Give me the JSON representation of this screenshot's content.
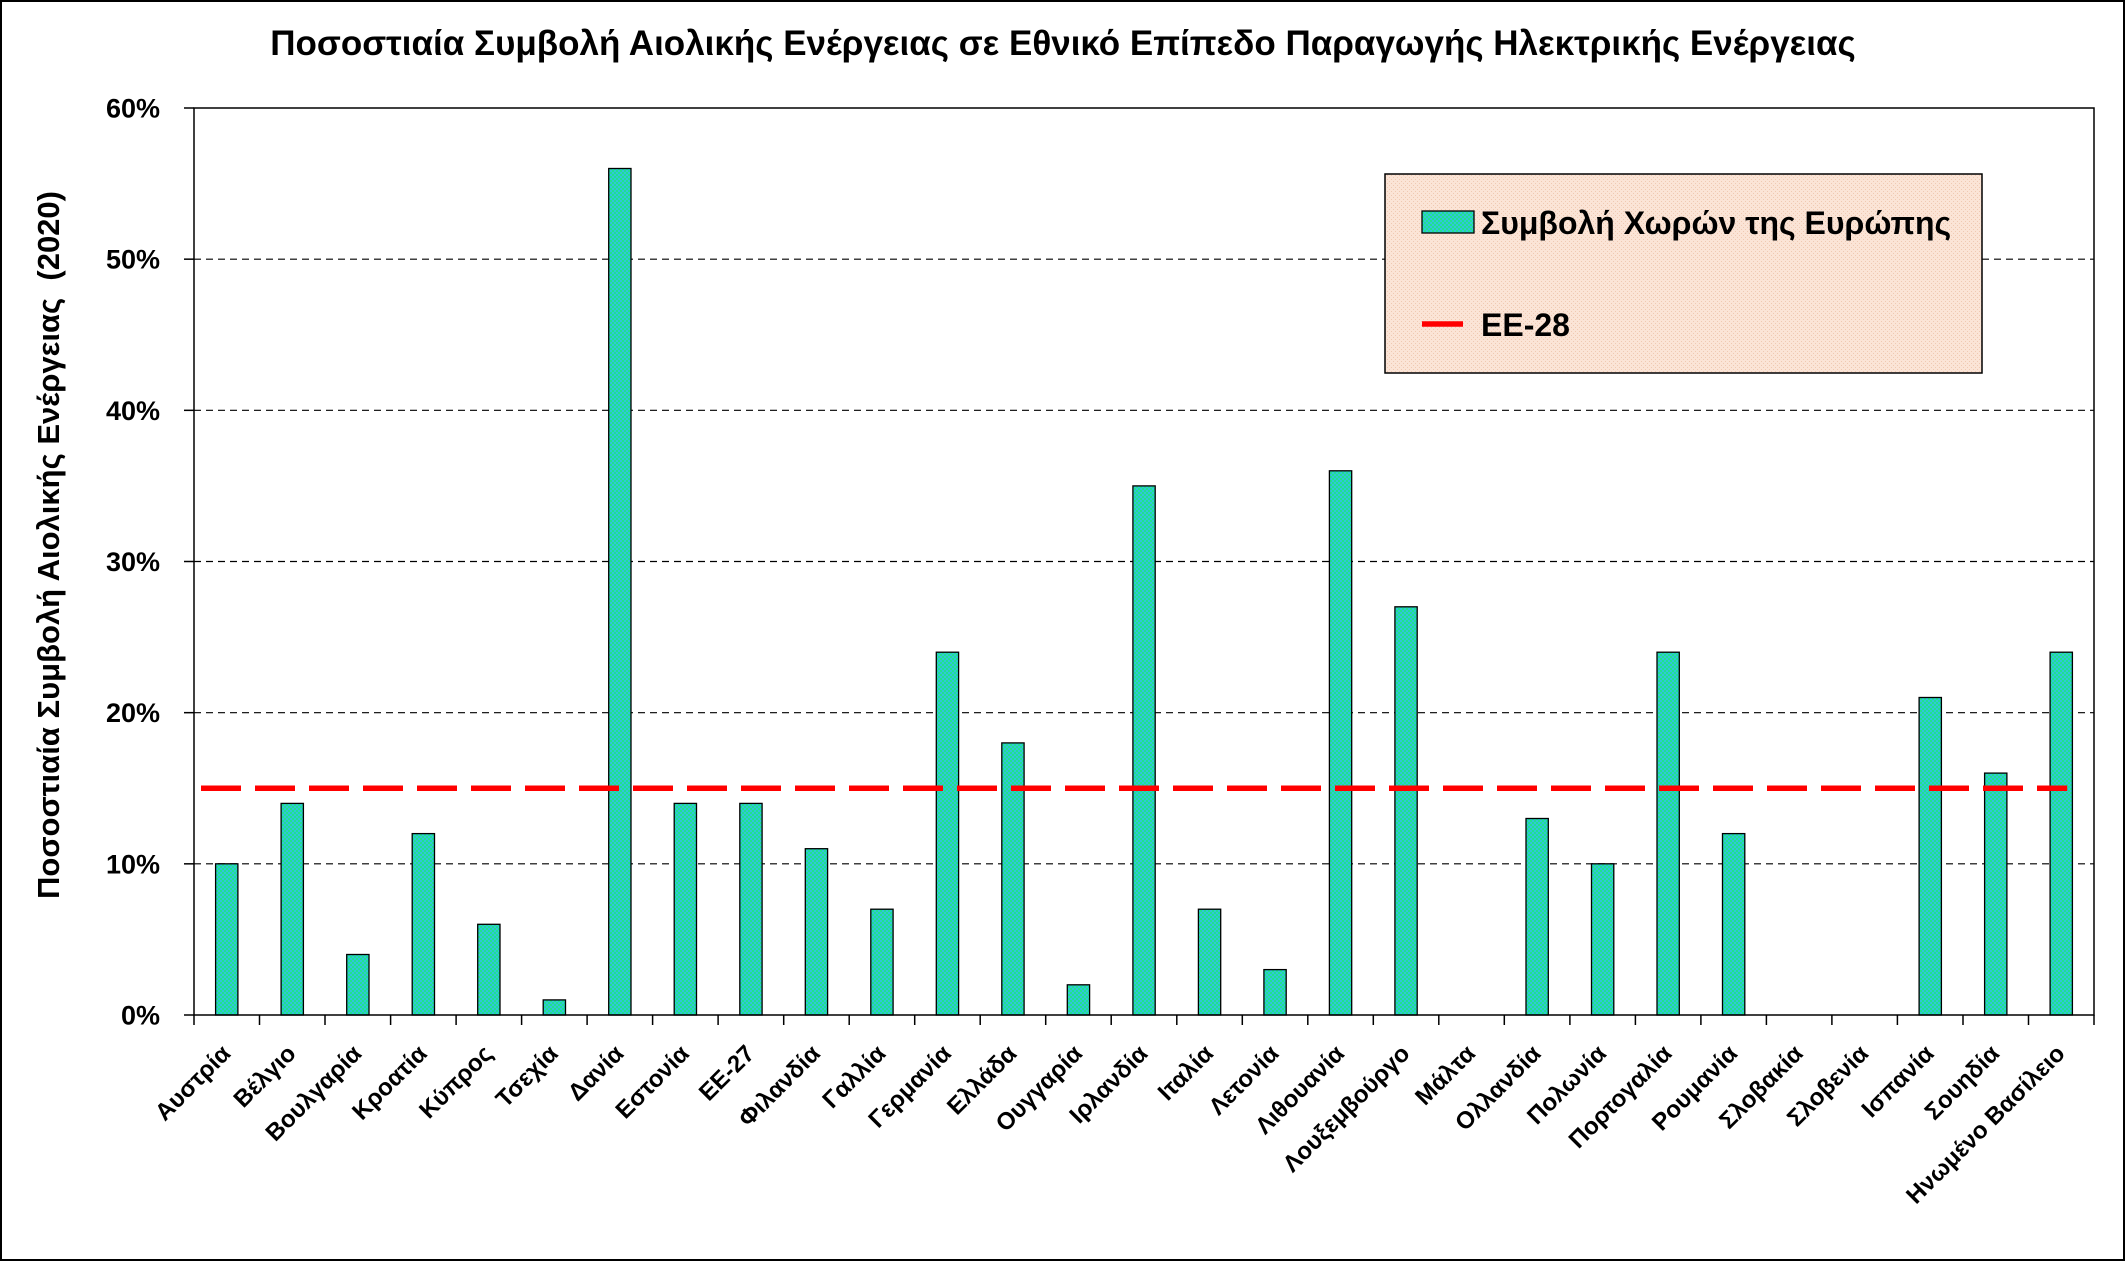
{
  "chart_data": {
    "type": "bar",
    "title": "Ποσοστιαία Συμβολή Αιολικής Ενέργειας σε Εθνικό Επίπεδο Παραγωγής Ηλεκτρικής Ενέργειας",
    "xlabel": "",
    "ylabel": "Ποσοστιαία Συμβολή Αιολικής Ενέργειας  (2020)",
    "categories": [
      "Αυστρία",
      "Βέλγιο",
      "Βουλγαρία",
      "Κροατία",
      "Κύπρος",
      "Τσεχία",
      "Δανία",
      "Εστονία",
      "ΕΕ-27",
      "Φιλανδία",
      "Γαλλία",
      "Γερμανία",
      "Ελλάδα",
      "Ουγγαρία",
      "Ιρλανδία",
      "Ιταλία",
      "Λετονία",
      "Λιθουανία",
      "Λουξεμβούργο",
      "Μάλτα",
      "Ολλανδία",
      "Πολωνία",
      "Πορτογαλία",
      "Ρουμανία",
      "Σλοβακία",
      "Σλοβενία",
      "Ισπανία",
      "Σουηδία",
      "Ηνωμένο Βασίλειο"
    ],
    "series": [
      {
        "name": "Συμβολή Χωρών της Ευρώπης",
        "type": "bar",
        "values": [
          10,
          14,
          4,
          12,
          6,
          1,
          56,
          14,
          14,
          11,
          7,
          24,
          18,
          2,
          35,
          7,
          3,
          36,
          27,
          0,
          13,
          10,
          24,
          12,
          0,
          0,
          21,
          16,
          24
        ]
      },
      {
        "name": "ΕΕ-28",
        "type": "line",
        "values": [
          15,
          15,
          15,
          15,
          15,
          15,
          15,
          15,
          15,
          15,
          15,
          15,
          15,
          15,
          15,
          15,
          15,
          15,
          15,
          15,
          15,
          15,
          15,
          15,
          15,
          15,
          15,
          15,
          15
        ]
      }
    ],
    "ylim": [
      0,
      60
    ],
    "yticks": [
      0,
      10,
      20,
      30,
      40,
      50,
      60
    ],
    "ytick_labels": [
      "0%",
      "10%",
      "20%",
      "30%",
      "40%",
      "50%",
      "60%"
    ],
    "grid": true,
    "legend": {
      "position": "top-right"
    }
  },
  "colors": {
    "bar_primary": "#1fe08f",
    "bar_secondary": "#30c8d8",
    "bar_outline": "#000000",
    "ee28_line": "#ff0000",
    "legend_bg": "#fbe4d6",
    "legend_texture": "#efc9b2"
  }
}
